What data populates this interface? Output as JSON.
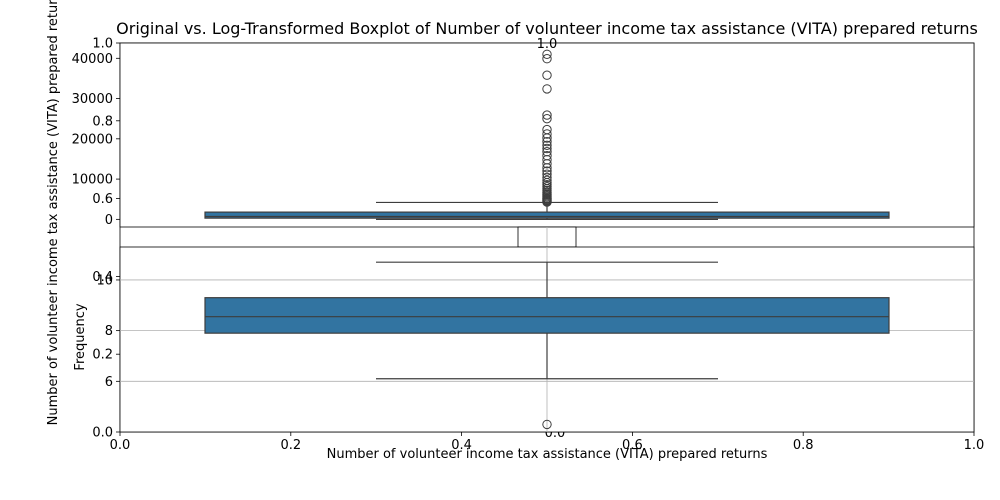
{
  "chart_data": {
    "type": "box",
    "title": "Original vs. Log-Transformed Boxplot of Number of volunteer income tax assistance (VITA) prepared returns",
    "outer_axes": {
      "xlabel": "Number of volunteer income tax assistance (VITA) prepared returns",
      "ylabel": "Frequency",
      "xticks": [
        "0.0",
        "0.2",
        "0.4",
        "0.6",
        "0.8",
        "1.0"
      ],
      "yticks": [
        "0.0",
        "0.2",
        "0.4",
        "0.6",
        "0.8",
        "1.0"
      ],
      "xlim": [
        0,
        1
      ],
      "ylim": [
        0,
        1
      ]
    },
    "inset_axes": {
      "xticks": [
        "0.0",
        "1.0"
      ]
    },
    "original": {
      "ylabel": "Number of volunteer income tax assistance (VITA) prepared returns",
      "yticks": [
        0,
        10000,
        20000,
        30000,
        40000
      ],
      "ylim": [
        -1900,
        43800
      ],
      "box": {
        "whisker_low": 0,
        "q1": 300,
        "median": 700,
        "q3": 1800,
        "whisker_high": 4200
      },
      "outliers": [
        4300,
        4500,
        4700,
        4900,
        5100,
        5300,
        5600,
        5900,
        6200,
        6500,
        6800,
        7200,
        7600,
        8100,
        8600,
        9100,
        9700,
        10400,
        11200,
        12000,
        12800,
        13800,
        14800,
        15800,
        16800,
        17600,
        18400,
        19300,
        20200,
        21200,
        22300,
        25000,
        25900,
        32400,
        35800,
        39900,
        41000
      ],
      "color": "#3274a1"
    },
    "log_transformed": {
      "yticks": [
        6,
        8,
        10
      ],
      "ylim": [
        4.0,
        11.3
      ],
      "box": {
        "whisker_low": 6.1,
        "q1": 7.9,
        "median": 8.55,
        "q3": 9.3,
        "whisker_high": 10.7
      },
      "outliers": [
        4.3
      ],
      "grid": true,
      "color": "#3274a1"
    }
  }
}
